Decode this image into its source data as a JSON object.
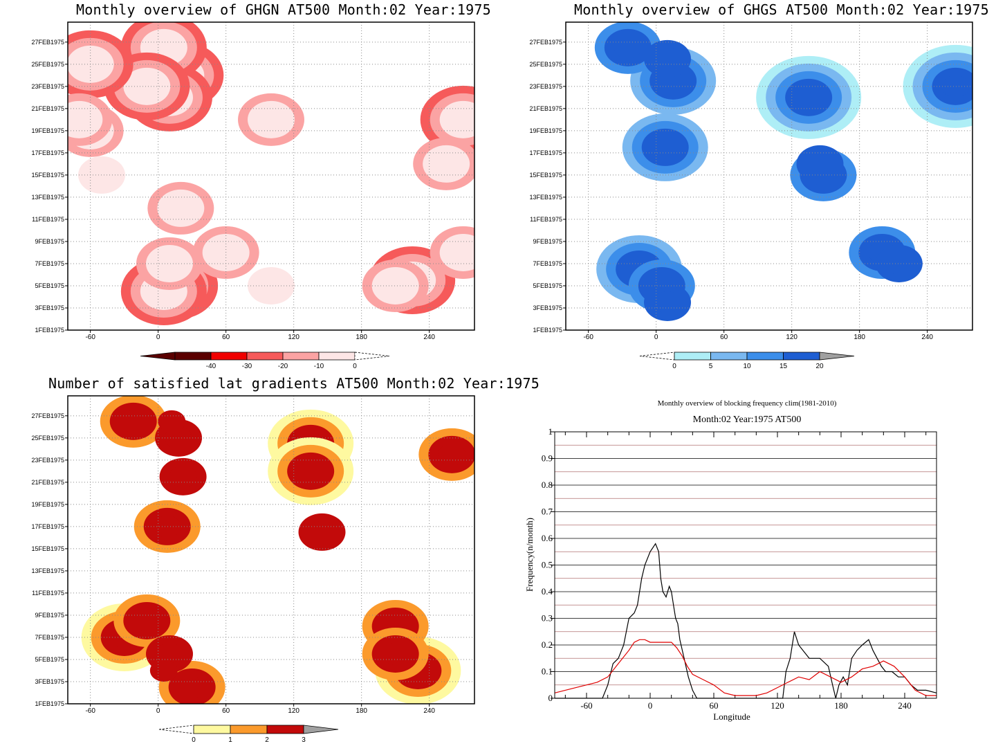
{
  "panels": {
    "ghgn": {
      "title": "Monthly overview of GHGN AT500 Month:02 Year:1975",
      "colorbar": {
        "labels": [
          "-40",
          "-30",
          "-20",
          "-10",
          "0"
        ],
        "colors": [
          "#5a0000",
          "#f00000",
          "#f65a5a",
          "#fba3a3",
          "#fde6e6",
          "#ffffff"
        ]
      }
    },
    "ghgs": {
      "title": "Monthly overview of GHGS AT500 Month:02 Year:1975",
      "colorbar": {
        "labels": [
          "0",
          "5",
          "10",
          "15",
          "20"
        ],
        "colors": [
          "#ffffff",
          "#aeeef6",
          "#7ab8f0",
          "#3c8eea",
          "#1e5ed2",
          "#a0a0a0"
        ]
      }
    },
    "lat": {
      "title": "Number of satisfied lat gradients AT500 Month:02 Year:1975",
      "colorbar": {
        "labels": [
          "0",
          "1",
          "2",
          "3"
        ],
        "colors": [
          "#ffffff",
          "#fef9a0",
          "#fb9a2c",
          "#c20a0a",
          "#a0a0a0"
        ]
      }
    },
    "freq": {
      "title_line1": "Monthly overview of blocking frequency clim(1981-2010)",
      "title_line2": "Month:02 Year:1975  AT500"
    }
  },
  "shared_axes": {
    "y_dates": [
      "1FEB1975",
      "3FEB1975",
      "5FEB1975",
      "7FEB1975",
      "9FEB1975",
      "11FEB1975",
      "13FEB1975",
      "15FEB1975",
      "17FEB1975",
      "19FEB1975",
      "21FEB1975",
      "23FEB1975",
      "25FEB1975",
      "27FEB1975"
    ],
    "x_ticks": [
      "-60",
      "0",
      "60",
      "120",
      "180",
      "240"
    ]
  },
  "chart_data": [
    {
      "type": "heatmap",
      "title": "Monthly overview of GHGN AT500 Month:02 Year:1975",
      "xlim": [
        -80,
        280
      ],
      "x_ticks": [
        -60,
        0,
        60,
        120,
        180,
        240
      ],
      "y_ticks": [
        "1FEB1975",
        "3FEB1975",
        "5FEB1975",
        "7FEB1975",
        "9FEB1975",
        "11FEB1975",
        "13FEB1975",
        "15FEB1975",
        "17FEB1975",
        "19FEB1975",
        "21FEB1975",
        "23FEB1975",
        "25FEB1975",
        "27FEB1975"
      ],
      "levels": [
        -40,
        -30,
        -20,
        -10,
        0
      ],
      "blobs": [
        {
          "x": 15,
          "day": 5,
          "level": -30
        },
        {
          "x": 5,
          "day": 4.5,
          "level": -30
        },
        {
          "x": 20,
          "day": 24,
          "level": -30
        },
        {
          "x": 10,
          "day": 22,
          "level": -30
        },
        {
          "x": 5,
          "day": 26.5,
          "level": -30
        },
        {
          "x": -10,
          "day": 23,
          "level": -30
        },
        {
          "x": -60,
          "day": 25,
          "level": -30
        },
        {
          "x": 225,
          "day": 5.5,
          "level": -30
        },
        {
          "x": 270,
          "day": 20,
          "level": -30
        },
        {
          "x": 10,
          "day": 7,
          "level": -20
        },
        {
          "x": 20,
          "day": 12,
          "level": -20
        },
        {
          "x": 210,
          "day": 5,
          "level": -20
        },
        {
          "x": 255,
          "day": 16,
          "level": -20
        },
        {
          "x": -60,
          "day": 19,
          "level": -20
        },
        {
          "x": -70,
          "day": 20,
          "level": -20
        },
        {
          "x": 100,
          "day": 20,
          "level": -20
        },
        {
          "x": 60,
          "day": 8,
          "level": -20
        },
        {
          "x": 270,
          "day": 8,
          "level": -20
        },
        {
          "x": -50,
          "day": 15,
          "level": -10
        },
        {
          "x": 100,
          "day": 5,
          "level": -10
        }
      ]
    },
    {
      "type": "heatmap",
      "title": "Monthly overview of GHGS AT500 Month:02 Year:1975",
      "xlim": [
        -80,
        280
      ],
      "x_ticks": [
        -60,
        0,
        60,
        120,
        180,
        240
      ],
      "y_ticks": [
        "1FEB1975",
        "3FEB1975",
        "5FEB1975",
        "7FEB1975",
        "9FEB1975",
        "11FEB1975",
        "13FEB1975",
        "15FEB1975",
        "17FEB1975",
        "19FEB1975",
        "21FEB1975",
        "23FEB1975",
        "25FEB1975",
        "27FEB1975"
      ],
      "levels": [
        0,
        5,
        10,
        15,
        20
      ],
      "blobs": [
        {
          "x": -25,
          "day": 26.5,
          "level": 10
        },
        {
          "x": 10,
          "day": 25.5,
          "level": 15
        },
        {
          "x": 15,
          "day": 23.5,
          "level": 5
        },
        {
          "x": 8,
          "day": 17.5,
          "level": 5
        },
        {
          "x": 145,
          "day": 16,
          "level": 15
        },
        {
          "x": 148,
          "day": 15,
          "level": 10
        },
        {
          "x": 215,
          "day": 7,
          "level": 15
        },
        {
          "x": 200,
          "day": 8,
          "level": 10
        },
        {
          "x": 5,
          "day": 5,
          "level": 10
        },
        {
          "x": -15,
          "day": 6.5,
          "level": 5
        },
        {
          "x": 10,
          "day": 3.5,
          "level": 15
        },
        {
          "x": 135,
          "day": 22,
          "level": 0
        },
        {
          "x": 265,
          "day": 23,
          "level": 0
        }
      ]
    },
    {
      "type": "heatmap",
      "title": "Number of satisfied lat gradients AT500 Month:02 Year:1975",
      "xlim": [
        -80,
        280
      ],
      "x_ticks": [
        -60,
        0,
        60,
        120,
        180,
        240
      ],
      "y_ticks": [
        "1FEB1975",
        "3FEB1975",
        "5FEB1975",
        "7FEB1975",
        "9FEB1975",
        "11FEB1975",
        "13FEB1975",
        "15FEB1975",
        "17FEB1975",
        "19FEB1975",
        "21FEB1975",
        "23FEB1975",
        "25FEB1975",
        "27FEB1975"
      ],
      "levels": [
        0,
        1,
        2,
        3
      ],
      "blobs": [
        {
          "x": 12,
          "day": 26.5,
          "level": 3
        },
        {
          "x": 22,
          "day": 24.5,
          "level": 3
        },
        {
          "x": 18,
          "day": 25,
          "level": 2
        },
        {
          "x": -22,
          "day": 26.5,
          "level": 1
        },
        {
          "x": 22,
          "day": 21.5,
          "level": 2
        },
        {
          "x": 8,
          "day": 17,
          "level": 1
        },
        {
          "x": 145,
          "day": 16.5,
          "level": 2
        },
        {
          "x": 135,
          "day": 24.5,
          "level": 0
        },
        {
          "x": 135,
          "day": 22,
          "level": 0
        },
        {
          "x": 260,
          "day": 23.5,
          "level": 1
        },
        {
          "x": 5,
          "day": 4,
          "level": 3
        },
        {
          "x": 10,
          "day": 5.5,
          "level": 2
        },
        {
          "x": -10,
          "day": 8.5,
          "level": 1
        },
        {
          "x": -30,
          "day": 7,
          "level": 0
        },
        {
          "x": 210,
          "day": 8,
          "level": 1
        },
        {
          "x": 210,
          "day": 5.5,
          "level": 1
        },
        {
          "x": 230,
          "day": 4,
          "level": 0
        },
        {
          "x": 30,
          "day": 2.5,
          "level": 1
        }
      ]
    },
    {
      "type": "line",
      "title": "Monthly overview of blocking frequency clim(1981-2010)",
      "subtitle": "Month:02 Year:1975  AT500",
      "xlabel": "Longitude",
      "ylabel": "Frequency(n/month)",
      "xlim": [
        -90,
        270
      ],
      "ylim": [
        0,
        1
      ],
      "x_ticks": [
        -60,
        0,
        60,
        120,
        180,
        240
      ],
      "y_ticks": [
        0,
        0.1,
        0.2,
        0.3,
        0.4,
        0.5,
        0.6,
        0.7,
        0.8,
        0.9,
        1
      ],
      "grid": true,
      "series": [
        {
          "color": "#000000",
          "x": [
            -90,
            -45,
            -40,
            -35,
            -30,
            -25,
            -20,
            -15,
            -12,
            -8,
            -5,
            0,
            5,
            8,
            10,
            12,
            15,
            18,
            20,
            22,
            24,
            26,
            28,
            32,
            36,
            40,
            44,
            48,
            70,
            100,
            125,
            128,
            132,
            136,
            140,
            144,
            150,
            160,
            168,
            172,
            175,
            178,
            182,
            186,
            190,
            195,
            200,
            206,
            210,
            214,
            218,
            222,
            228,
            234,
            240,
            246,
            252,
            256,
            260,
            270
          ],
          "y": [
            0,
            0,
            0.05,
            0.13,
            0.15,
            0.2,
            0.3,
            0.32,
            0.35,
            0.45,
            0.5,
            0.55,
            0.58,
            0.55,
            0.45,
            0.4,
            0.38,
            0.42,
            0.4,
            0.35,
            0.3,
            0.28,
            0.22,
            0.15,
            0.08,
            0.03,
            0,
            0,
            0,
            0,
            0,
            0.1,
            0.15,
            0.25,
            0.2,
            0.18,
            0.15,
            0.15,
            0.12,
            0.05,
            0,
            0.05,
            0.08,
            0.05,
            0.15,
            0.18,
            0.2,
            0.22,
            0.18,
            0.15,
            0.12,
            0.1,
            0.1,
            0.08,
            0.08,
            0.05,
            0.03,
            0.03,
            0.03,
            0.02
          ]
        },
        {
          "color": "#e00000",
          "x": [
            -90,
            -70,
            -50,
            -40,
            -30,
            -20,
            -15,
            -10,
            -5,
            0,
            10,
            20,
            25,
            30,
            35,
            40,
            50,
            60,
            70,
            80,
            90,
            100,
            110,
            120,
            130,
            140,
            150,
            160,
            170,
            180,
            190,
            200,
            210,
            220,
            230,
            240,
            250,
            260,
            270
          ],
          "y": [
            0.02,
            0.04,
            0.06,
            0.08,
            0.13,
            0.18,
            0.21,
            0.22,
            0.22,
            0.21,
            0.21,
            0.21,
            0.19,
            0.16,
            0.12,
            0.09,
            0.07,
            0.05,
            0.02,
            0.01,
            0.01,
            0.01,
            0.02,
            0.04,
            0.06,
            0.08,
            0.07,
            0.1,
            0.08,
            0.06,
            0.08,
            0.11,
            0.12,
            0.14,
            0.12,
            0.08,
            0.03,
            0.01,
            0.01
          ]
        }
      ]
    }
  ]
}
